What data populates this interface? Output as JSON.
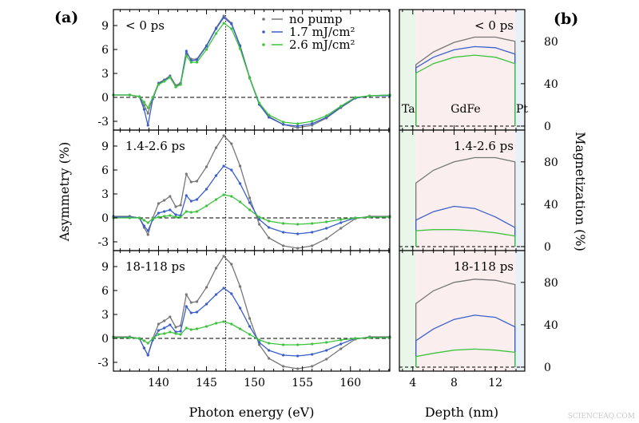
{
  "colors": {
    "no_pump": "#777777",
    "low": "#3a5fcd",
    "high": "#3cc43c",
    "ta_region": "#eaf6ea",
    "gdfe_region": "#fbeeee",
    "pt_region": "#e8f1f8"
  },
  "labels": {
    "panel_a": "(a)",
    "panel_b": "(b)",
    "watermark": "SCIENCEAQ.COM"
  },
  "chart_data": [
    {
      "type": "line",
      "xlabel": "Photon energy (eV)",
      "ylabel": "Asymmetry (%)",
      "xlim": [
        135.3,
        164.1
      ],
      "xticks": [
        140,
        145,
        150,
        155,
        160
      ],
      "yticks": [
        -3,
        0,
        3,
        6,
        9
      ],
      "marker_line": 147,
      "legend": {
        "placement": "top-right",
        "entries": [
          "no pump",
          "1.7 mJ/cm²",
          "2.6 mJ/cm²"
        ]
      },
      "x": [
        135.3,
        137,
        138,
        138.5,
        138.9,
        139.4,
        140,
        140.6,
        141.2,
        141.8,
        142.3,
        142.9,
        143.4,
        144,
        145,
        146,
        146.8,
        147.6,
        148.5,
        149.5,
        150.5,
        151.5,
        153,
        154.5,
        156,
        157.5,
        159,
        160.5,
        162,
        164.1
      ],
      "panels": [
        {
          "label": "< 0 ps",
          "ylim": [
            -4.1,
            11
          ],
          "series": [
            {
              "name": "no pump",
              "values": [
                0.3,
                0.3,
                0.1,
                -1,
                -2,
                0,
                1.8,
                2.2,
                2.7,
                1.5,
                1.8,
                5.5,
                4.8,
                4.8,
                6.5,
                8.7,
                10.2,
                9.3,
                6.5,
                2.5,
                -0.8,
                -2.4,
                -3.4,
                -3.8,
                -3.5,
                -2.6,
                -1.3,
                -0.1,
                0.2,
                0.3
              ]
            },
            {
              "name": "1.7 mJ/cm²",
              "values": [
                0.3,
                0.3,
                0.1,
                -1.5,
                -3.5,
                -0.2,
                1.7,
                2.1,
                2.6,
                1.3,
                1.7,
                5.8,
                4.6,
                4.7,
                6.4,
                8.6,
                10.0,
                9.2,
                6.4,
                2.4,
                -0.9,
                -2.5,
                -3.4,
                -3.6,
                -3.3,
                -2.5,
                -1.2,
                -0.1,
                0.2,
                0.2
              ]
            },
            {
              "name": "2.6 mJ/cm²",
              "values": [
                0.3,
                0.3,
                0.1,
                -0.6,
                -1.3,
                0,
                1.6,
                2.0,
                2.5,
                1.3,
                1.6,
                5.2,
                4.4,
                4.4,
                6.0,
                8.0,
                9.3,
                8.6,
                6.1,
                2.4,
                -0.7,
                -2.2,
                -3.1,
                -3.3,
                -3.0,
                -2.3,
                -1.1,
                0,
                0.2,
                0.3
              ]
            }
          ]
        },
        {
          "label": "1.4-2.6 ps",
          "ylim": [
            -4.1,
            11
          ],
          "series": [
            {
              "name": "no pump",
              "values": [
                0.2,
                0.2,
                0,
                -1.2,
                -2.1,
                0,
                1.8,
                2.2,
                2.7,
                1.4,
                1.6,
                5.5,
                4.5,
                4.6,
                6.4,
                8.8,
                10.3,
                9.3,
                6.5,
                2.5,
                -0.8,
                -2.5,
                -3.5,
                -3.8,
                -3.5,
                -2.6,
                -1.3,
                -0.1,
                0.2,
                0.2
              ]
            },
            {
              "name": "1.7 mJ/cm²",
              "values": [
                0.1,
                0.1,
                0,
                -1.0,
                -1.6,
                -0.2,
                0.6,
                0.8,
                1.0,
                0.4,
                0.3,
                2.8,
                2.1,
                2.3,
                3.6,
                5.3,
                6.5,
                6.0,
                4.3,
                1.9,
                -0.2,
                -1.2,
                -1.8,
                -2.0,
                -1.8,
                -1.3,
                -0.6,
                0,
                0.1,
                0.1
              ]
            },
            {
              "name": "2.6 mJ/cm²",
              "values": [
                0,
                0,
                0,
                -0.3,
                -0.6,
                -0.1,
                0.1,
                0.2,
                0.3,
                0.1,
                0.1,
                0.8,
                0.7,
                0.8,
                1.5,
                2.3,
                2.9,
                2.7,
                2.0,
                1.0,
                0.1,
                -0.4,
                -0.7,
                -0.8,
                -0.7,
                -0.5,
                -0.2,
                0,
                0.1,
                0.1
              ]
            }
          ]
        },
        {
          "label": "18-118 ps",
          "ylim": [
            -4.1,
            11
          ],
          "series": [
            {
              "name": "no pump",
              "values": [
                0.2,
                0.2,
                0,
                -1.2,
                -2.1,
                0,
                1.8,
                2.2,
                2.7,
                1.4,
                1.6,
                5.5,
                4.5,
                4.6,
                6.4,
                8.8,
                10.3,
                9.3,
                6.5,
                2.5,
                -0.8,
                -2.5,
                -3.5,
                -3.8,
                -3.5,
                -2.6,
                -1.3,
                -0.1,
                0.2,
                0.2
              ]
            },
            {
              "name": "1.7 mJ/cm²",
              "values": [
                0.1,
                0.1,
                0,
                -1.2,
                -2.1,
                -0.2,
                1.0,
                1.3,
                1.7,
                0.8,
                0.9,
                4.0,
                3.2,
                3.3,
                4.3,
                5.5,
                6.3,
                5.6,
                3.8,
                1.5,
                -0.5,
                -1.5,
                -2.1,
                -2.2,
                -2.0,
                -1.5,
                -0.7,
                0,
                0.1,
                0.1
              ]
            },
            {
              "name": "2.6 mJ/cm²",
              "values": [
                0.1,
                0.1,
                0,
                -0.3,
                -0.6,
                0,
                0.5,
                0.6,
                0.8,
                0.6,
                0.5,
                1.3,
                1.1,
                1.2,
                1.5,
                1.9,
                2.1,
                1.8,
                1.2,
                0.5,
                -0.2,
                -0.6,
                -0.8,
                -0.8,
                -0.7,
                -0.5,
                -0.2,
                0,
                0.1,
                0.1
              ]
            }
          ]
        }
      ]
    },
    {
      "type": "line",
      "xlabel": "Depth (nm)",
      "ylabel": "Magnetization (%)",
      "xlim": [
        2.7,
        14.85
      ],
      "xticks": [
        4,
        8,
        12
      ],
      "yticks": [
        0,
        40,
        80
      ],
      "regions": [
        {
          "name": "Ta",
          "from": 2.7,
          "to": 4.3
        },
        {
          "name": "GdFe",
          "from": 4.3,
          "to": 13.9
        },
        {
          "name": "Pt",
          "from": 13.9,
          "to": 14.85
        }
      ],
      "x": [
        4.3,
        6,
        8,
        10,
        12,
        13.9
      ],
      "panels": [
        {
          "label": "< 0 ps",
          "ylim": [
            -3.8,
            110
          ],
          "series": [
            {
              "name": "no pump",
              "values": [
                58,
                70,
                79,
                84,
                84,
                80
              ]
            },
            {
              "name": "1.7 mJ/cm²",
              "values": [
                55,
                65,
                72,
                75,
                74,
                68
              ]
            },
            {
              "name": "2.6 mJ/cm²",
              "values": [
                50,
                59,
                65,
                67,
                65,
                59
              ]
            }
          ]
        },
        {
          "label": "1.4-2.6 ps",
          "ylim": [
            -3.8,
            110
          ],
          "series": [
            {
              "name": "no pump",
              "values": [
                60,
                72,
                80,
                84,
                84,
                80
              ]
            },
            {
              "name": "1.7 mJ/cm²",
              "values": [
                25,
                33,
                38,
                36,
                28,
                18
              ]
            },
            {
              "name": "2.6 mJ/cm²",
              "values": [
                15,
                16,
                16,
                15,
                13,
                10
              ]
            }
          ]
        },
        {
          "label": "18-118 ps",
          "ylim": [
            -3.8,
            110
          ],
          "series": [
            {
              "name": "no pump",
              "values": [
                60,
                72,
                80,
                83,
                82,
                78
              ]
            },
            {
              "name": "1.7 mJ/cm²",
              "values": [
                25,
                36,
                45,
                49,
                47,
                38
              ]
            },
            {
              "name": "2.6 mJ/cm²",
              "values": [
                10,
                13,
                16,
                17,
                16,
                14
              ]
            }
          ]
        }
      ]
    }
  ]
}
